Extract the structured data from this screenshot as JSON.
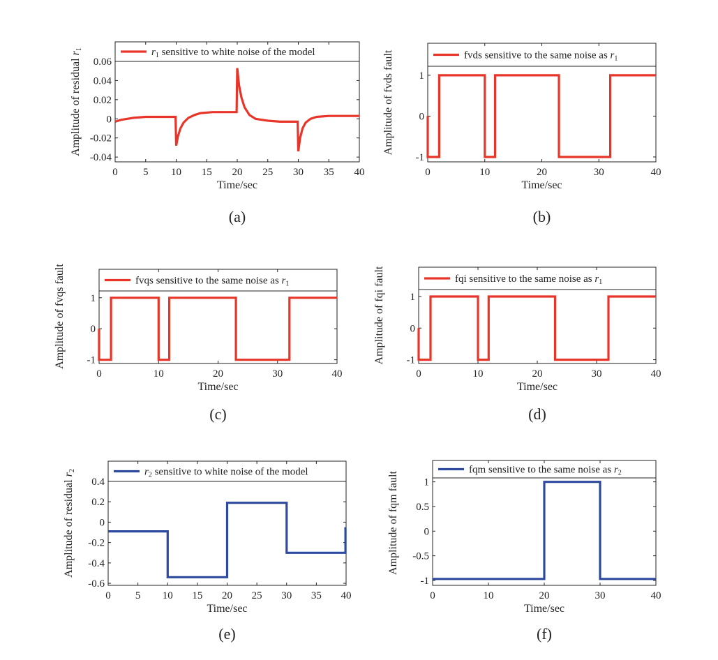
{
  "figure": {
    "panels": [
      {
        "panel_label": "(a)",
        "legend_prefix": "r",
        "legend_sub": "1",
        "legend_text": " sensitive to white noise of the model",
        "y_prefix": "Amplitude of residual r",
        "y_sub": "1",
        "color": "#e8352a"
      },
      {
        "panel_label": "(b)",
        "legend_prefix": "fvds sensitive to the same noise as r",
        "legend_sub": "1",
        "legend_text": "",
        "y_prefix": "Amplitude of fvds fault",
        "y_sub": "",
        "color": "#e8352a"
      },
      {
        "panel_label": "(c)",
        "legend_prefix": "fvqs sensitive to the same noise as r",
        "legend_sub": "1",
        "legend_text": "",
        "y_prefix": "Amplitude of fvqs fault",
        "y_sub": "",
        "color": "#e8352a"
      },
      {
        "panel_label": "(d)",
        "legend_prefix": "fqi sensitive to the same noise as r",
        "legend_sub": "1",
        "legend_text": "",
        "y_prefix": "Amplitude of fqi fault",
        "y_sub": "",
        "color": "#e8352a"
      },
      {
        "panel_label": "(e)",
        "legend_prefix": "r",
        "legend_sub": "2",
        "legend_text": " sensitive to white noise of the model",
        "y_prefix": "Amplitude of residual r",
        "y_sub": "2",
        "color": "#2e4a9e"
      },
      {
        "panel_label": "(f)",
        "legend_prefix": "fqm sensitive to the same noise as r",
        "legend_sub": "2",
        "legend_text": "",
        "y_prefix": "Amplitude of fqm fault",
        "y_sub": "",
        "color": "#2e4a9e"
      }
    ]
  },
  "chart_data": [
    {
      "type": "line",
      "xlabel": "Time/sec",
      "xlim": [
        0,
        40
      ],
      "ylim": [
        -0.045,
        0.06
      ],
      "xticks": [
        0,
        5,
        10,
        15,
        20,
        25,
        30,
        35,
        40
      ],
      "yticks": [
        -0.04,
        -0.02,
        0,
        0.02,
        0.04,
        0.06
      ],
      "ytick_labels": [
        "-0.04",
        "-0.02",
        "0",
        "0.02",
        "0.04",
        "0.06"
      ],
      "series": [
        {
          "name": "r1 sensitive to white noise of the model",
          "x": [
            0,
            0.5,
            1,
            2,
            3,
            5,
            7,
            9,
            9.9,
            10,
            10.3,
            10.7,
            11.2,
            12,
            13,
            14,
            16,
            18,
            19.9,
            20,
            20.3,
            20.7,
            21.2,
            22,
            23,
            25,
            27,
            29,
            29.9,
            30,
            30.3,
            30.7,
            31.2,
            32,
            33,
            35,
            37,
            40
          ],
          "y": [
            -0.003,
            -0.002,
            -0.001,
            0,
            0.001,
            0.002,
            0.002,
            0.002,
            0.002,
            -0.028,
            -0.018,
            -0.01,
            -0.004,
            0.001,
            0.004,
            0.006,
            0.007,
            0.007,
            0.007,
            0.053,
            0.035,
            0.022,
            0.012,
            0.004,
            0,
            -0.002,
            -0.003,
            -0.003,
            -0.003,
            -0.034,
            -0.02,
            -0.01,
            -0.004,
            0,
            0.002,
            0.003,
            0.003,
            0.003
          ]
        }
      ]
    },
    {
      "type": "line",
      "xlabel": "Time/sec",
      "xlim": [
        0,
        40
      ],
      "ylim": [
        -1.12,
        1.22
      ],
      "xticks": [
        0,
        10,
        20,
        30,
        40
      ],
      "yticks": [
        -1,
        0,
        1
      ],
      "ytick_labels": [
        "-1",
        "0",
        "1"
      ],
      "series": [
        {
          "name": "fvds sensitive to the same noise as r1",
          "x": [
            0,
            0,
            0.2,
            2,
            2,
            10,
            10,
            11.8,
            11.8,
            23,
            23,
            32,
            32,
            40
          ],
          "y": [
            0,
            -1,
            -1,
            -1,
            1,
            1,
            -1,
            -1,
            1,
            1,
            -1,
            -1,
            1,
            1
          ]
        }
      ]
    },
    {
      "type": "line",
      "xlabel": "Time/sec",
      "xlim": [
        0,
        40
      ],
      "ylim": [
        -1.12,
        1.22
      ],
      "xticks": [
        0,
        10,
        20,
        30,
        40
      ],
      "yticks": [
        -1,
        0,
        1
      ],
      "ytick_labels": [
        "-1",
        "0",
        "1"
      ],
      "series": [
        {
          "name": "fvqs sensitive to the same noise as r1",
          "x": [
            0,
            0,
            0.2,
            2,
            2,
            10,
            10,
            11.8,
            11.8,
            23,
            23,
            32,
            32,
            40
          ],
          "y": [
            0,
            -1,
            -1,
            -1,
            1,
            1,
            -1,
            -1,
            1,
            1,
            -1,
            -1,
            1,
            1
          ]
        }
      ]
    },
    {
      "type": "line",
      "xlabel": "Time/sec",
      "xlim": [
        0,
        40
      ],
      "ylim": [
        -1.12,
        1.22
      ],
      "xticks": [
        0,
        10,
        20,
        30,
        40
      ],
      "yticks": [
        -1,
        0,
        1
      ],
      "ytick_labels": [
        "-1",
        "0",
        "1"
      ],
      "series": [
        {
          "name": "fqi sensitive to the same noise as r1",
          "x": [
            0,
            0,
            0.2,
            2,
            2,
            10,
            10,
            11.8,
            11.8,
            23,
            23,
            32,
            32,
            40
          ],
          "y": [
            0,
            -1,
            -1,
            -1,
            1,
            1,
            -1,
            -1,
            1,
            1,
            -1,
            -1,
            1,
            1
          ]
        }
      ]
    },
    {
      "type": "line",
      "xlabel": "Time/sec",
      "xlim": [
        0,
        40
      ],
      "ylim": [
        -0.62,
        0.4
      ],
      "xticks": [
        0,
        5,
        10,
        15,
        20,
        25,
        30,
        35,
        40
      ],
      "yticks": [
        -0.6,
        -0.4,
        -0.2,
        0,
        0.2,
        0.4
      ],
      "ytick_labels": [
        "-0.6",
        "-0.4",
        "-0.2",
        "0",
        "0.2",
        "0.4"
      ],
      "series": [
        {
          "name": "r2 sensitive to white noise of the model",
          "x": [
            0,
            10,
            10,
            20,
            20,
            30,
            30,
            39.9,
            39.9,
            40
          ],
          "y": [
            -0.09,
            -0.09,
            -0.54,
            -0.54,
            0.19,
            0.19,
            -0.3,
            -0.3,
            -0.06,
            -0.06
          ]
        }
      ]
    },
    {
      "type": "line",
      "xlabel": "Time/sec",
      "xlim": [
        0,
        40
      ],
      "ylim": [
        -1.1,
        1.08
      ],
      "xticks": [
        0,
        10,
        20,
        30,
        40
      ],
      "yticks": [
        -1,
        -0.5,
        0,
        0.5,
        1
      ],
      "ytick_labels": [
        "-1",
        "-0.5",
        "0",
        "0.5",
        "1"
      ],
      "series": [
        {
          "name": "fqm sensitive to the same noise as r2",
          "x": [
            0,
            20,
            20,
            30,
            30,
            40
          ],
          "y": [
            -0.97,
            -0.97,
            1,
            1,
            -0.97,
            -0.97
          ]
        }
      ]
    }
  ]
}
